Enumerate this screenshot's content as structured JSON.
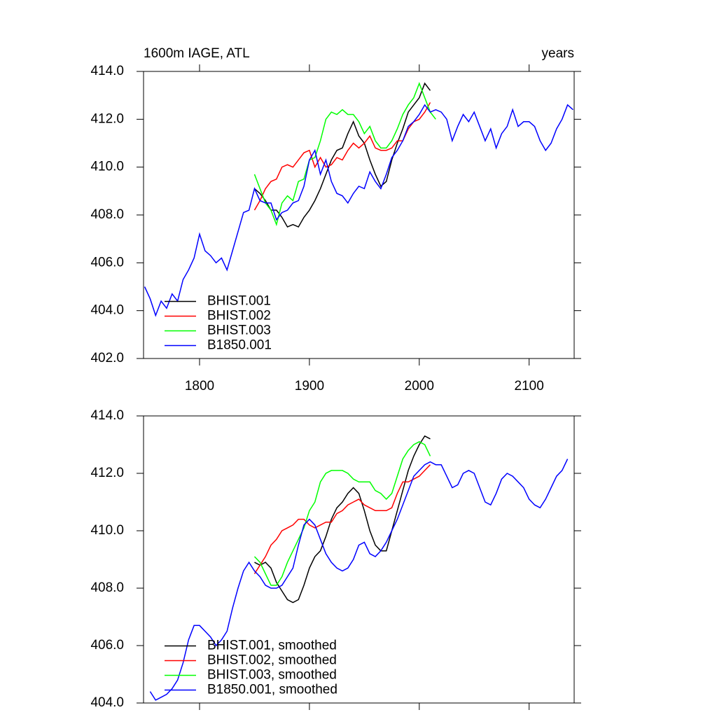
{
  "chart_data": [
    {
      "type": "line",
      "title": "1600m IAGE, ATL",
      "right_title": "years",
      "xlim": [
        1749,
        2141
      ],
      "xticks": [
        1800,
        1900,
        2000,
        2100
      ],
      "ylim": [
        402,
        414
      ],
      "yticks": [
        {
          "value": 402,
          "label": "402.0"
        },
        {
          "value": 404,
          "label": "404.0"
        },
        {
          "value": 406,
          "label": "406.0"
        },
        {
          "value": 408,
          "label": "408.0"
        },
        {
          "value": 410,
          "label": "410.0"
        },
        {
          "value": 412,
          "label": "412.0"
        },
        {
          "value": 414,
          "label": "414.0"
        }
      ],
      "legend": "lower left",
      "series": [
        {
          "name": "BHIST.001",
          "color": "#000000",
          "x": [
            1850,
            1855,
            1860,
            1865,
            1870,
            1875,
            1880,
            1885,
            1890,
            1895,
            1900,
            1905,
            1910,
            1915,
            1920,
            1925,
            1930,
            1935,
            1940,
            1945,
            1950,
            1955,
            1960,
            1965,
            1970,
            1975,
            1980,
            1985,
            1990,
            1995,
            2000,
            2005,
            2010
          ],
          "values": [
            409.1,
            408.9,
            408.6,
            408.2,
            408.2,
            407.9,
            407.5,
            407.6,
            407.5,
            407.9,
            408.2,
            408.6,
            409.1,
            409.7,
            410.3,
            410.7,
            410.8,
            411.4,
            411.9,
            411.3,
            411.0,
            410.3,
            409.7,
            409.2,
            409.4,
            410.3,
            411.0,
            411.6,
            412.3,
            412.6,
            412.9,
            413.5,
            413.2
          ]
        },
        {
          "name": "BHIST.002",
          "color": "#ff0000",
          "x": [
            1850,
            1855,
            1860,
            1865,
            1870,
            1875,
            1880,
            1885,
            1890,
            1895,
            1900,
            1905,
            1910,
            1915,
            1920,
            1925,
            1930,
            1935,
            1940,
            1945,
            1950,
            1955,
            1960,
            1965,
            1970,
            1975,
            1980,
            1985,
            1990,
            1995,
            2000,
            2005,
            2010
          ],
          "values": [
            408.2,
            408.6,
            409.1,
            409.4,
            409.5,
            410.0,
            410.1,
            410.0,
            410.3,
            410.6,
            410.7,
            410.0,
            410.4,
            410.0,
            410.1,
            410.4,
            410.3,
            410.7,
            411.0,
            410.8,
            411.0,
            411.3,
            410.8,
            410.7,
            410.7,
            410.8,
            411.1,
            411.1,
            411.6,
            411.9,
            412.0,
            412.3,
            412.7
          ]
        },
        {
          "name": "BHIST.003",
          "color": "#00ff00",
          "x": [
            1850,
            1855,
            1860,
            1865,
            1870,
            1875,
            1880,
            1885,
            1890,
            1895,
            1900,
            1905,
            1910,
            1915,
            1920,
            1925,
            1930,
            1935,
            1940,
            1945,
            1950,
            1955,
            1960,
            1965,
            1970,
            1975,
            1980,
            1985,
            1990,
            1995,
            2000,
            2005,
            2010,
            2015
          ],
          "values": [
            409.7,
            409.1,
            408.5,
            408.2,
            407.6,
            408.5,
            408.8,
            408.6,
            409.4,
            409.5,
            410.3,
            410.4,
            411.1,
            412.0,
            412.3,
            412.2,
            412.4,
            412.2,
            412.2,
            411.9,
            411.4,
            411.7,
            411.1,
            410.8,
            410.8,
            411.1,
            411.6,
            412.2,
            412.6,
            412.9,
            413.5,
            412.9,
            412.3,
            412.0
          ]
        },
        {
          "name": "B1850.001",
          "color": "#0000ff",
          "x": [
            1750,
            1755,
            1760,
            1765,
            1770,
            1775,
            1780,
            1785,
            1790,
            1795,
            1800,
            1805,
            1810,
            1815,
            1820,
            1825,
            1830,
            1835,
            1840,
            1845,
            1850,
            1855,
            1860,
            1865,
            1870,
            1875,
            1880,
            1885,
            1890,
            1895,
            1900,
            1905,
            1910,
            1915,
            1920,
            1925,
            1930,
            1935,
            1940,
            1945,
            1950,
            1955,
            1960,
            1965,
            1970,
            1975,
            1980,
            1985,
            1990,
            1995,
            2000,
            2005,
            2010,
            2015,
            2020,
            2025,
            2030,
            2035,
            2040,
            2045,
            2050,
            2055,
            2060,
            2065,
            2070,
            2075,
            2080,
            2085,
            2090,
            2095,
            2100,
            2105,
            2110,
            2115,
            2120,
            2125,
            2130,
            2135,
            2140
          ],
          "values": [
            405.0,
            404.5,
            403.8,
            404.4,
            404.1,
            404.7,
            404.4,
            405.3,
            405.7,
            406.2,
            407.2,
            406.5,
            406.3,
            406.0,
            406.2,
            405.7,
            406.5,
            407.3,
            408.1,
            408.2,
            409.1,
            408.6,
            408.5,
            408.5,
            407.8,
            408.1,
            408.2,
            408.5,
            408.6,
            409.2,
            410.3,
            410.7,
            409.7,
            410.3,
            409.4,
            408.9,
            408.8,
            408.5,
            408.9,
            409.2,
            409.1,
            409.8,
            409.4,
            409.1,
            409.7,
            410.4,
            410.7,
            411.1,
            411.7,
            411.9,
            412.2,
            412.6,
            412.3,
            412.4,
            412.3,
            412.0,
            411.1,
            411.7,
            412.2,
            411.9,
            412.3,
            411.7,
            411.1,
            411.6,
            410.8,
            411.4,
            411.7,
            412.4,
            411.7,
            411.9,
            411.9,
            411.7,
            411.1,
            410.7,
            411.0,
            411.6,
            412.0,
            412.6,
            412.4
          ]
        }
      ]
    },
    {
      "type": "line",
      "xlim": [
        1749,
        2141
      ],
      "ylim": [
        404,
        414
      ],
      "yticks": [
        {
          "value": 404,
          "label": "404.0"
        },
        {
          "value": 406,
          "label": "406.0"
        },
        {
          "value": 408,
          "label": "408.0"
        },
        {
          "value": 410,
          "label": "410.0"
        },
        {
          "value": 412,
          "label": "412.0"
        },
        {
          "value": 414,
          "label": "414.0"
        }
      ],
      "legend": "lower left",
      "series": [
        {
          "name": "BHIST.001, smoothed",
          "color": "#000000",
          "x": [
            1850,
            1855,
            1860,
            1865,
            1870,
            1875,
            1880,
            1885,
            1890,
            1895,
            1900,
            1905,
            1910,
            1915,
            1920,
            1925,
            1930,
            1935,
            1940,
            1945,
            1950,
            1955,
            1960,
            1965,
            1970,
            1975,
            1980,
            1985,
            1990,
            1995,
            2000,
            2005,
            2010
          ],
          "values": [
            408.9,
            408.8,
            408.9,
            408.7,
            408.2,
            407.9,
            407.6,
            407.5,
            407.6,
            408.1,
            408.7,
            409.1,
            409.3,
            409.8,
            410.4,
            410.8,
            411.0,
            411.3,
            411.5,
            411.3,
            410.7,
            410.0,
            409.5,
            409.3,
            409.3,
            410.0,
            410.7,
            411.4,
            412.1,
            412.6,
            413.0,
            413.3,
            413.2
          ]
        },
        {
          "name": "BHIST.002, smoothed",
          "color": "#ff0000",
          "x": [
            1850,
            1855,
            1860,
            1865,
            1870,
            1875,
            1880,
            1885,
            1890,
            1895,
            1900,
            1905,
            1910,
            1915,
            1920,
            1925,
            1930,
            1935,
            1940,
            1945,
            1950,
            1955,
            1960,
            1965,
            1970,
            1975,
            1980,
            1985,
            1990,
            1995,
            2000,
            2005,
            2010
          ],
          "values": [
            408.5,
            408.8,
            409.1,
            409.5,
            409.7,
            410.0,
            410.1,
            410.2,
            410.4,
            410.4,
            410.2,
            410.1,
            410.2,
            410.3,
            410.3,
            410.6,
            410.7,
            410.9,
            411.0,
            411.1,
            410.9,
            410.8,
            410.7,
            410.7,
            410.7,
            410.8,
            411.3,
            411.7,
            411.7,
            411.8,
            411.9,
            412.1,
            412.3
          ]
        },
        {
          "name": "BHIST.003, smoothed",
          "color": "#00ff00",
          "x": [
            1850,
            1855,
            1860,
            1865,
            1870,
            1875,
            1880,
            1885,
            1890,
            1895,
            1900,
            1905,
            1910,
            1915,
            1920,
            1925,
            1930,
            1935,
            1940,
            1945,
            1950,
            1955,
            1960,
            1965,
            1970,
            1975,
            1980,
            1985,
            1990,
            1995,
            2000,
            2005,
            2010
          ],
          "values": [
            409.1,
            408.9,
            408.5,
            408.1,
            408.1,
            408.4,
            408.9,
            409.3,
            409.7,
            410.1,
            410.7,
            411.0,
            411.7,
            412.0,
            412.1,
            412.1,
            412.1,
            412.0,
            411.8,
            411.7,
            411.7,
            411.7,
            411.4,
            411.3,
            411.1,
            411.3,
            411.9,
            412.5,
            412.8,
            413.0,
            413.1,
            413.0,
            412.6
          ]
        },
        {
          "name": "B1850.001, smoothed",
          "color": "#0000ff",
          "x": [
            1755,
            1760,
            1765,
            1770,
            1775,
            1780,
            1785,
            1790,
            1795,
            1800,
            1805,
            1810,
            1815,
            1820,
            1825,
            1830,
            1835,
            1840,
            1845,
            1850,
            1855,
            1860,
            1865,
            1870,
            1875,
            1880,
            1885,
            1890,
            1895,
            1900,
            1905,
            1910,
            1915,
            1920,
            1925,
            1930,
            1935,
            1940,
            1945,
            1950,
            1955,
            1960,
            1965,
            1970,
            1975,
            1980,
            1985,
            1990,
            1995,
            2000,
            2005,
            2010,
            2015,
            2020,
            2025,
            2030,
            2035,
            2040,
            2045,
            2050,
            2055,
            2060,
            2065,
            2070,
            2075,
            2080,
            2085,
            2090,
            2095,
            2100,
            2105,
            2110,
            2115,
            2120,
            2125,
            2130,
            2135
          ],
          "values": [
            404.4,
            404.1,
            404.2,
            404.3,
            404.5,
            404.8,
            405.4,
            406.2,
            406.7,
            406.7,
            406.5,
            406.3,
            406.0,
            406.2,
            406.5,
            407.3,
            408.0,
            408.6,
            408.9,
            408.6,
            408.4,
            408.1,
            408.0,
            408.0,
            408.1,
            408.4,
            408.7,
            409.5,
            410.2,
            410.4,
            410.2,
            409.7,
            409.2,
            408.9,
            408.7,
            408.6,
            408.7,
            409.0,
            409.5,
            409.6,
            409.2,
            409.1,
            409.3,
            409.6,
            410.0,
            410.4,
            410.9,
            411.4,
            411.9,
            412.1,
            412.3,
            412.4,
            412.3,
            412.3,
            411.9,
            411.5,
            411.6,
            412.0,
            412.1,
            412.0,
            411.5,
            411.0,
            410.9,
            411.3,
            411.8,
            412.0,
            411.9,
            411.7,
            411.5,
            411.1,
            410.9,
            410.8,
            411.1,
            411.5,
            411.9,
            412.1,
            412.5
          ]
        }
      ]
    }
  ]
}
